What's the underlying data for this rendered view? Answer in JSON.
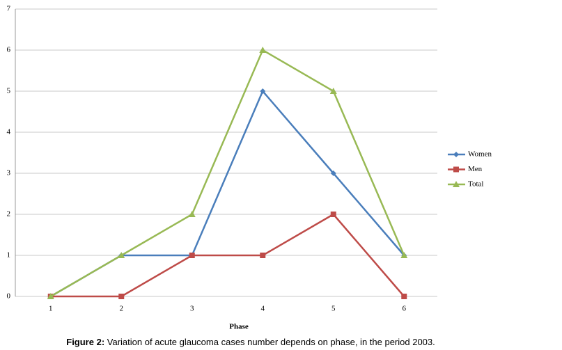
{
  "chart_data": {
    "type": "line",
    "caption_label": "Figure 2:",
    "caption": "Variation of acute glaucoma cases number depends on phase, in the period 2003.",
    "xlabel": "Phase",
    "categories": [
      "1",
      "2",
      "3",
      "4",
      "5",
      "6"
    ],
    "series": [
      {
        "name": "Women",
        "color": "#4a7ebb",
        "marker": "diamond",
        "values": [
          0,
          1,
          1,
          5,
          3,
          1
        ]
      },
      {
        "name": "Men",
        "color": "#be4b48",
        "marker": "square",
        "values": [
          0,
          0,
          1,
          1,
          2,
          0
        ]
      },
      {
        "name": "Total",
        "color": "#98b954",
        "marker": "triangle",
        "values": [
          0,
          1,
          2,
          6,
          5,
          1
        ]
      }
    ],
    "ylim": [
      0,
      7
    ],
    "yticks": [
      0,
      1,
      2,
      3,
      4,
      5,
      6,
      7
    ],
    "grid": true,
    "legend": "right"
  }
}
